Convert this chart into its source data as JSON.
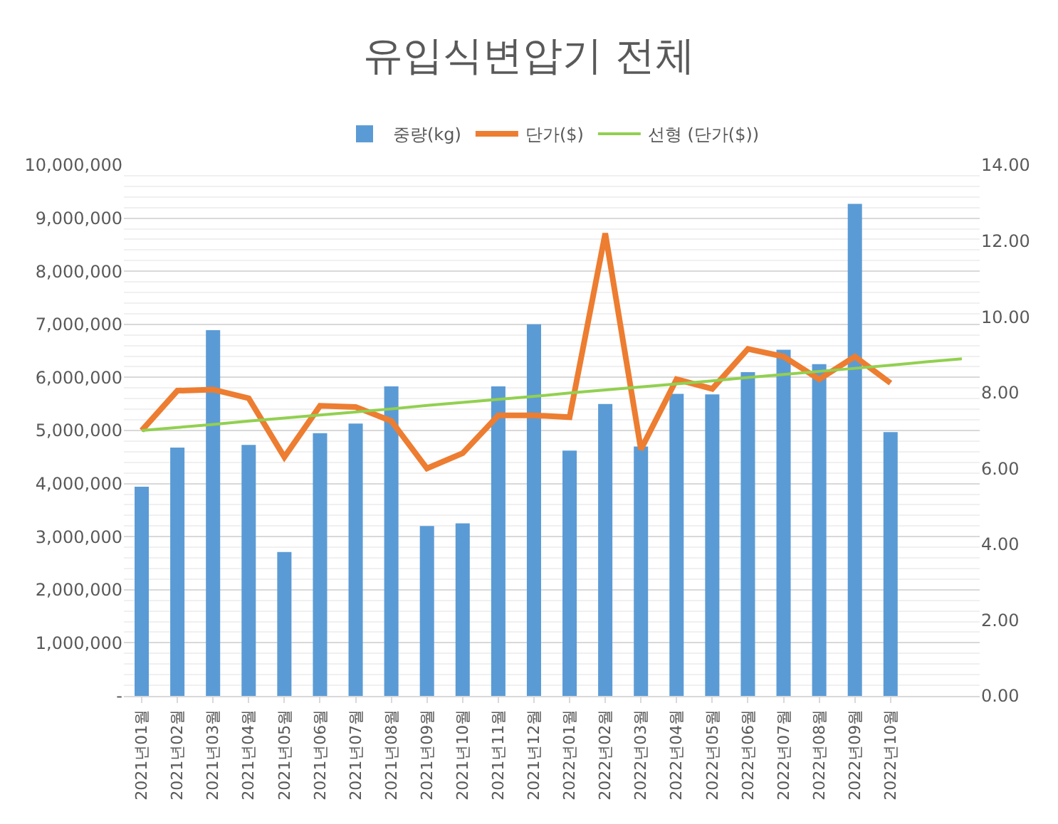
{
  "chart_data": {
    "type": "bar",
    "title": "유입식변압기 전체",
    "categories": [
      "2021년01월",
      "2021년02월",
      "2021년03월",
      "2021년04월",
      "2021년05월",
      "2021년06월",
      "2021년07월",
      "2021년08월",
      "2021년09월",
      "2021년10월",
      "2021년11월",
      "2021년12월",
      "2022년01월",
      "2022년02월",
      "2022년03월",
      "2022년04월",
      "2022년05월",
      "2022년06월",
      "2022년07월",
      "2022년08월",
      "2022년09월",
      "2022년10월",
      null,
      null
    ],
    "series": [
      {
        "name": "중량(kg)",
        "color": "#5b9bd5",
        "values": [
          3940000,
          4680000,
          6890000,
          4730000,
          2710000,
          4950000,
          5130000,
          5830000,
          3200000,
          3250000,
          5830000,
          7000000,
          4620000,
          5500000,
          4700000,
          5690000,
          5680000,
          6100000,
          6520000,
          6250000,
          9270000,
          4970000,
          null,
          null
        ]
      },
      {
        "name": "단가($)",
        "type": "line",
        "axis": "y2",
        "color": "#ed7d31",
        "values": [
          7.0,
          8.05,
          8.08,
          7.85,
          6.3,
          7.65,
          7.62,
          7.25,
          6.0,
          6.4,
          7.4,
          7.4,
          7.35,
          12.2,
          6.5,
          8.35,
          8.1,
          9.15,
          8.95,
          8.35,
          8.95,
          8.25,
          null,
          null
        ]
      },
      {
        "name": "선형 (단가($))",
        "type": "line",
        "axis": "y2",
        "color": "#92d050",
        "values": [
          7.0,
          7.08,
          7.16,
          7.25,
          7.33,
          7.41,
          7.49,
          7.57,
          7.66,
          7.74,
          7.82,
          7.9,
          7.99,
          8.07,
          8.15,
          8.23,
          8.31,
          8.4,
          8.48,
          8.56,
          8.64,
          8.72,
          8.81,
          8.89
        ]
      }
    ],
    "ylim": [
      0,
      10000000
    ],
    "yticks": [
      {
        "value": 0,
        "label": "-"
      },
      {
        "value": 1000000,
        "label": "1,000,000"
      },
      {
        "value": 2000000,
        "label": "2,000,000"
      },
      {
        "value": 3000000,
        "label": "3,000,000"
      },
      {
        "value": 4000000,
        "label": "4,000,000"
      },
      {
        "value": 5000000,
        "label": "5,000,000"
      },
      {
        "value": 6000000,
        "label": "6,000,000"
      },
      {
        "value": 7000000,
        "label": "7,000,000"
      },
      {
        "value": 8000000,
        "label": "8,000,000"
      },
      {
        "value": 9000000,
        "label": "9,000,000"
      },
      {
        "value": 10000000,
        "label": "10,000,000"
      }
    ],
    "y2lim": [
      0,
      14
    ],
    "y2ticks": [
      {
        "value": 0,
        "label": "0.00"
      },
      {
        "value": 2,
        "label": "2.00"
      },
      {
        "value": 4,
        "label": "4.00"
      },
      {
        "value": 6,
        "label": "6.00"
      },
      {
        "value": 8,
        "label": "8.00"
      },
      {
        "value": 10,
        "label": "10.00"
      },
      {
        "value": 12,
        "label": "12.00"
      },
      {
        "value": 14,
        "label": "14.00"
      }
    ],
    "grid": "y",
    "legend": "top",
    "marker": "none",
    "line_style": "solid"
  }
}
